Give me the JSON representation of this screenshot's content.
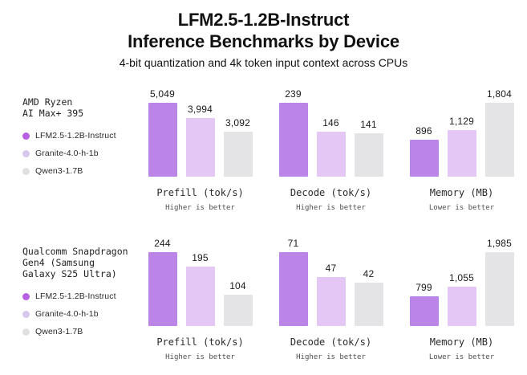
{
  "header": {
    "title_line1": "LFM2.5-1.2B-Instruct",
    "title_line2": "Inference Benchmarks by Device",
    "subtitle": "4-bit quantization and 4k token input context across CPUs"
  },
  "colors": {
    "bars": [
      "#bb85e8",
      "#e5c7f6",
      "#e4e3e5"
    ],
    "dots": [
      "#b760e3",
      "#d9c7ee",
      "#e0dfe2"
    ]
  },
  "legend": {
    "items": [
      "LFM2.5-1.2B-Instruct",
      "Granite-4.0-h-1b",
      "Qwen3-1.7B"
    ]
  },
  "chart_data": [
    {
      "type": "bar",
      "device_lines": [
        "AMD Ryzen",
        "AI Max+ 395"
      ],
      "series": [
        "LFM2.5-1.2B-Instruct",
        "Granite-4.0-h-1b",
        "Qwen3-1.7B"
      ],
      "legend_position": "left",
      "charts": [
        {
          "title": "Prefill (tok/s)",
          "note": "Higher is better",
          "values": [
            5049,
            3994,
            3092
          ],
          "labels": [
            "5,049",
            "3,994",
            "3,092"
          ]
        },
        {
          "title": "Decode (tok/s)",
          "note": "Higher is better",
          "values": [
            239,
            146,
            141
          ],
          "labels": [
            "239",
            "146",
            "141"
          ]
        },
        {
          "title": "Memory (MB)",
          "note": "Lower is better",
          "values": [
            896,
            1129,
            1804
          ],
          "labels": [
            "896",
            "1,129",
            "1,804"
          ]
        }
      ]
    },
    {
      "type": "bar",
      "device_lines": [
        "Qualcomm Snapdragon",
        "Gen4 (Samsung",
        "Galaxy S25 Ultra)"
      ],
      "series": [
        "LFM2.5-1.2B-Instruct",
        "Granite-4.0-h-1b",
        "Qwen3-1.7B"
      ],
      "legend_position": "left",
      "charts": [
        {
          "title": "Prefill (tok/s)",
          "note": "Higher is better",
          "values": [
            244,
            195,
            104
          ],
          "labels": [
            "244",
            "195",
            "104"
          ]
        },
        {
          "title": "Decode (tok/s)",
          "note": "Higher is better",
          "values": [
            71,
            47,
            42
          ],
          "labels": [
            "71",
            "47",
            "42"
          ]
        },
        {
          "title": "Memory (MB)",
          "note": "Lower is better",
          "values": [
            799,
            1055,
            1985
          ],
          "labels": [
            "799",
            "1,055",
            "1,985"
          ]
        }
      ]
    }
  ]
}
